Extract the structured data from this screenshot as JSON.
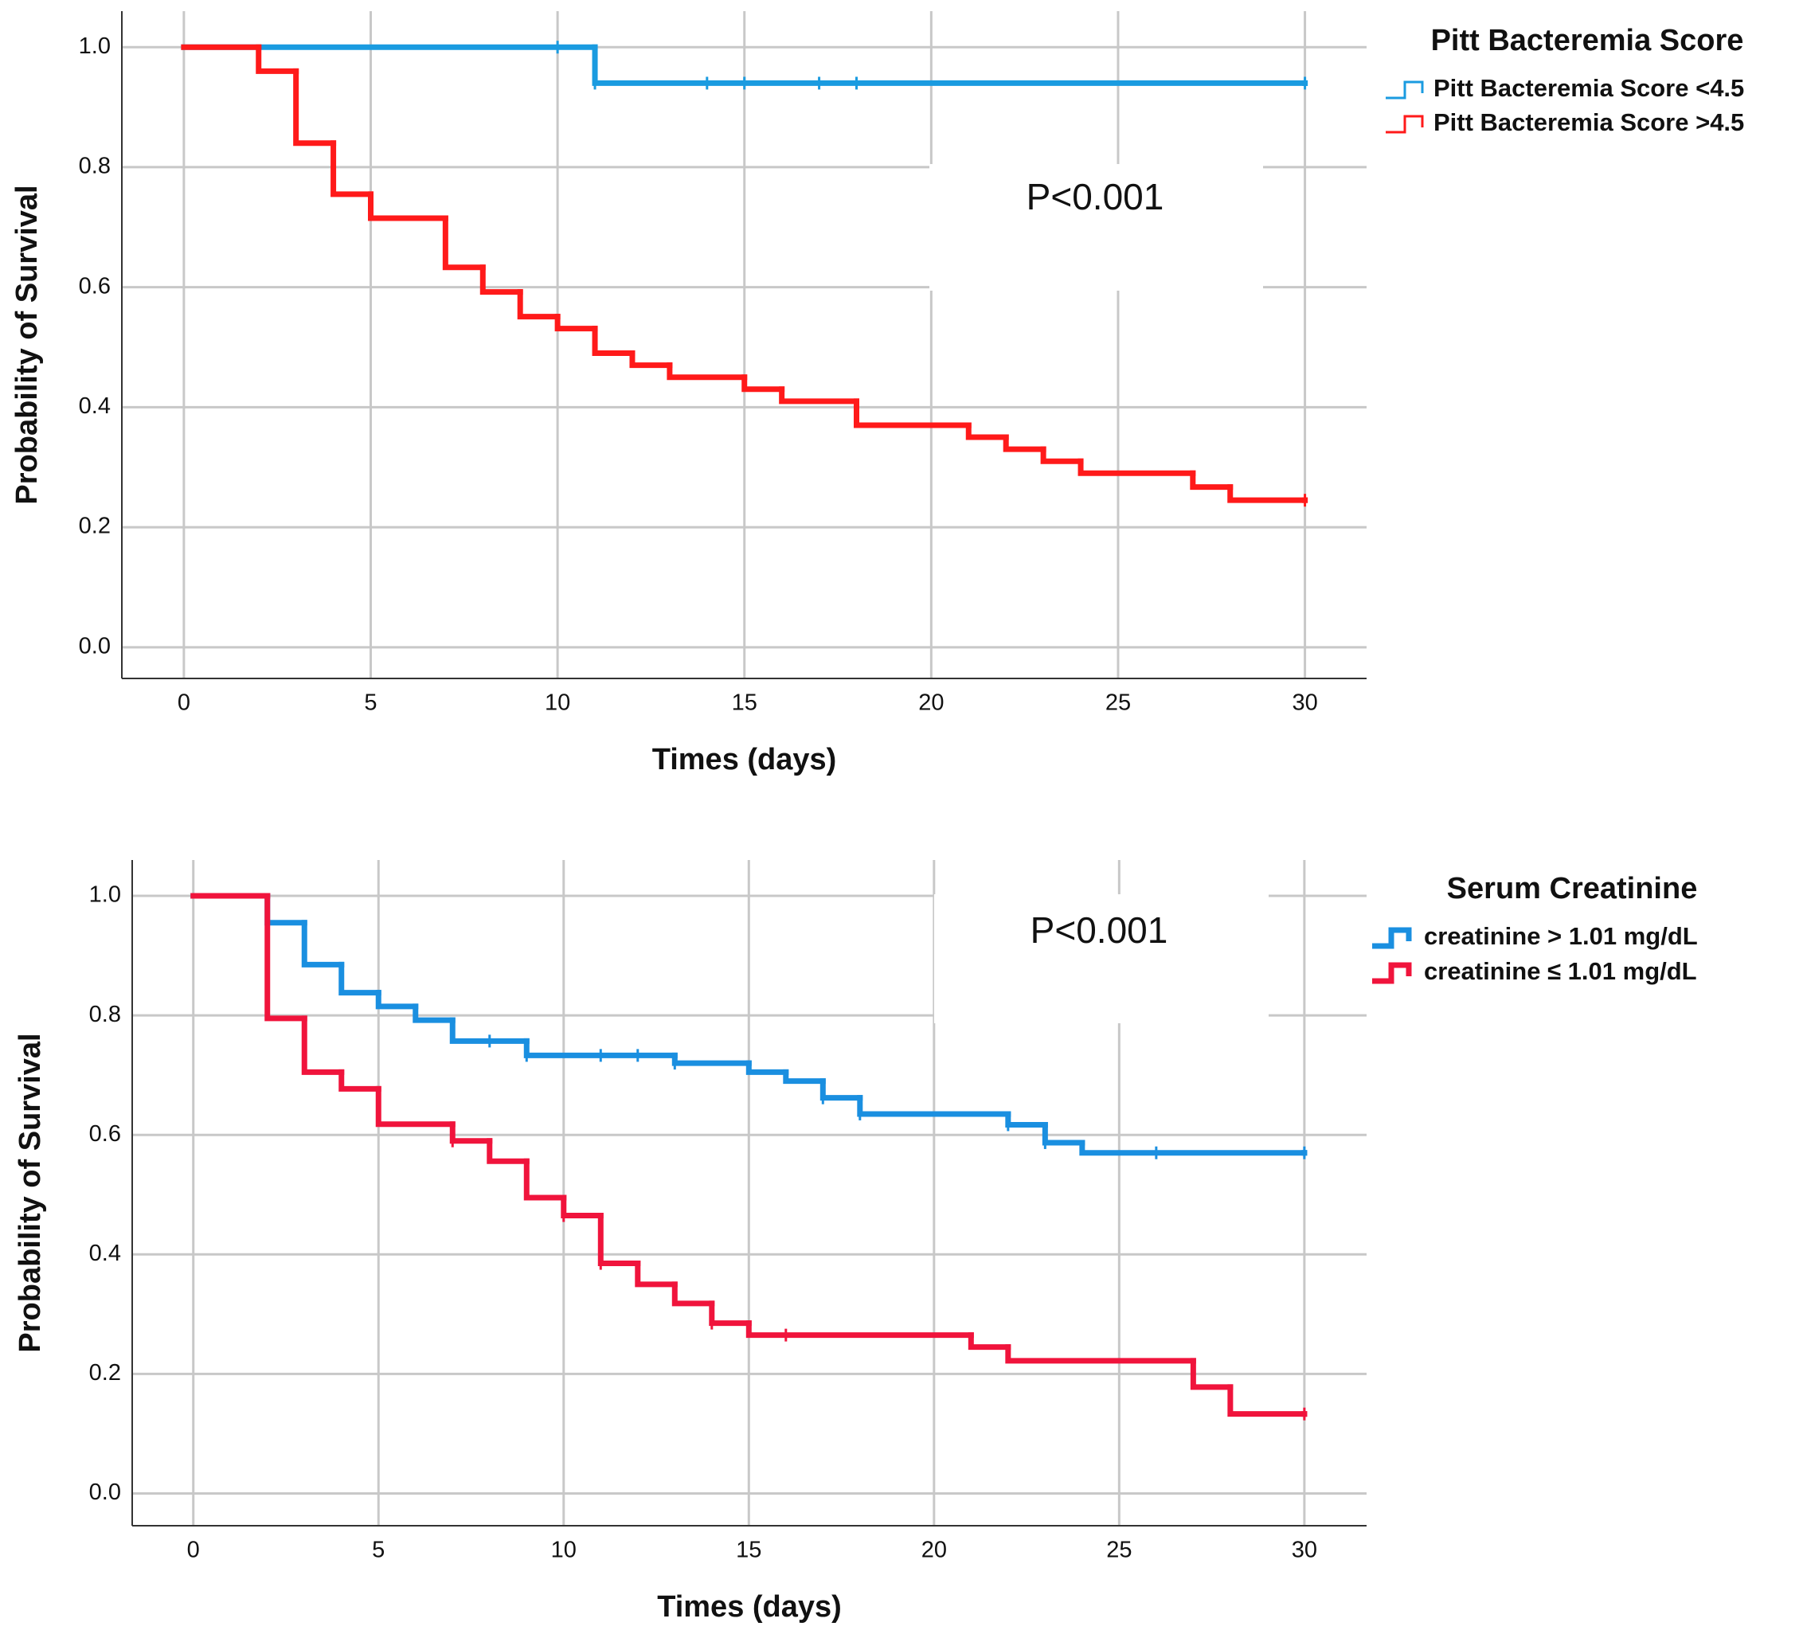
{
  "chart_data": [
    {
      "type": "step",
      "legend_title": "Pitt Bacteremia Score",
      "xlabel": "Times (days)",
      "ylabel": "Probability of Survival",
      "annotation": "P<0.001",
      "xlim": [
        -1.66,
        31.65
      ],
      "ylim": [
        -0.052,
        1.06
      ],
      "xticks": [
        0,
        5,
        10,
        15,
        20,
        25,
        30
      ],
      "yticks": [
        {
          "value": 0,
          "label": "0.0"
        },
        0.2,
        0.4,
        0.6,
        0.8,
        {
          "value": 1,
          "label": "1.0"
        }
      ],
      "grid": true,
      "series": [
        {
          "name": "Pitt Bacteremia Score <4.5",
          "color": "#1a9be0",
          "x": [
            0,
            11,
            30
          ],
          "values": [
            1.0,
            0.94,
            0.94
          ],
          "censored_x": [
            10,
            11,
            14,
            15,
            17,
            18,
            30
          ],
          "censored_y": [
            1.0,
            0.94,
            0.94,
            0.94,
            0.94,
            0.94,
            0.94
          ]
        },
        {
          "name": "Pitt Bacteremia Score >4.5",
          "color": "#ff1a1a",
          "x": [
            0,
            2,
            3,
            4,
            5,
            7,
            8,
            9,
            10,
            11,
            12,
            13,
            15,
            16,
            18,
            21,
            22,
            23,
            24,
            27,
            28,
            30
          ],
          "values": [
            1.0,
            0.96,
            0.84,
            0.755,
            0.715,
            0.633,
            0.592,
            0.551,
            0.531,
            0.49,
            0.47,
            0.45,
            0.43,
            0.41,
            0.37,
            0.35,
            0.33,
            0.31,
            0.29,
            0.267,
            0.245,
            0.245
          ],
          "censored_x": [
            30
          ],
          "censored_y": [
            0.245
          ]
        }
      ]
    },
    {
      "type": "step",
      "legend_title": "Serum Creatinine",
      "xlabel": "Times (days)",
      "ylabel": "Probability of Survival",
      "annotation": "P<0.001",
      "xlim": [
        -1.65,
        31.68
      ],
      "ylim": [
        -0.054,
        1.06
      ],
      "xticks": [
        0,
        5,
        10,
        15,
        20,
        25,
        30
      ],
      "yticks": [
        {
          "value": 0,
          "label": "0.0"
        },
        0.2,
        0.4,
        0.6,
        0.8,
        {
          "value": 1,
          "label": "1.0"
        }
      ],
      "grid": true,
      "series": [
        {
          "name": "creatinine > 1.01 mg/dL",
          "color": "#1a8fe0",
          "x": [
            0,
            2,
            3,
            4,
            5,
            6,
            7,
            9,
            13,
            15,
            16,
            17,
            18,
            22,
            23,
            24,
            30
          ],
          "values": [
            1.0,
            0.955,
            0.885,
            0.838,
            0.815,
            0.792,
            0.757,
            0.733,
            0.72,
            0.705,
            0.69,
            0.662,
            0.635,
            0.617,
            0.587,
            0.57,
            0.57
          ],
          "censored_x": [
            8,
            9,
            11,
            12,
            13,
            17,
            18,
            22,
            23,
            26,
            30
          ],
          "censored_y": [
            0.757,
            0.733,
            0.733,
            0.733,
            0.72,
            0.662,
            0.635,
            0.617,
            0.587,
            0.57,
            0.57
          ]
        },
        {
          "name": "creatinine ≤ 1.01 mg/dL",
          "color": "#f0143c",
          "x": [
            0,
            2,
            3,
            4,
            5,
            7,
            8,
            9,
            10,
            11,
            12,
            13,
            14,
            15,
            21,
            22,
            27,
            28,
            30
          ],
          "values": [
            1.0,
            0.795,
            0.705,
            0.677,
            0.618,
            0.59,
            0.556,
            0.495,
            0.465,
            0.385,
            0.35,
            0.318,
            0.285,
            0.265,
            0.245,
            0.222,
            0.178,
            0.133,
            0.133
          ],
          "censored_x": [
            7,
            10,
            11,
            14,
            16,
            30
          ],
          "censored_y": [
            0.59,
            0.465,
            0.385,
            0.285,
            0.265,
            0.133
          ]
        }
      ]
    }
  ]
}
